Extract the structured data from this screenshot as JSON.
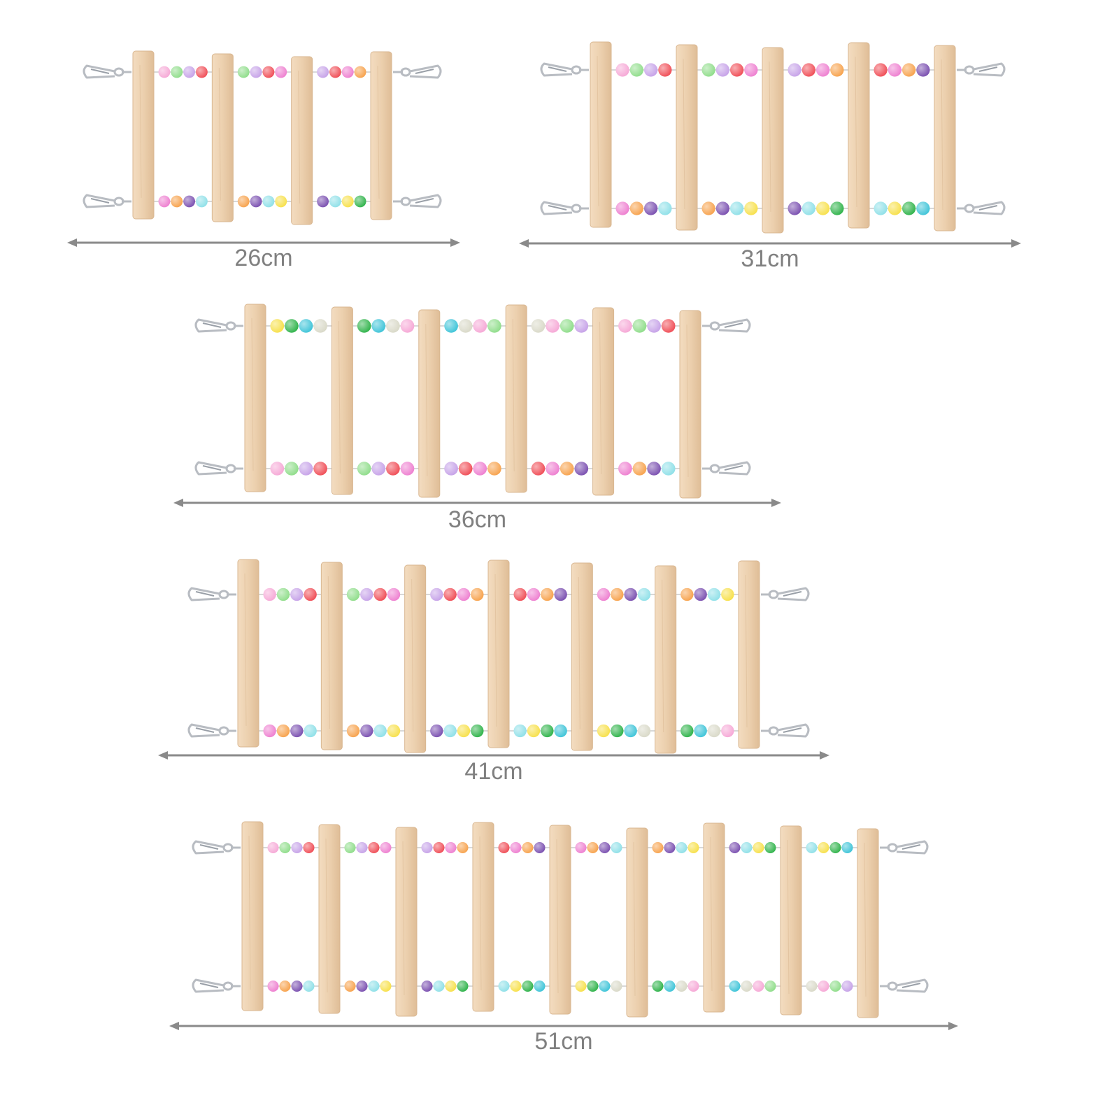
{
  "ladders": [
    {
      "label": "26cm",
      "rungs": 4
    },
    {
      "label": "31cm",
      "rungs": 5
    },
    {
      "label": "36cm",
      "rungs": 6
    },
    {
      "label": "41cm",
      "rungs": 7
    },
    {
      "label": "51cm",
      "rungs": 9
    }
  ],
  "colors": {
    "background": "#ffffff",
    "dimension_line": "#8a8a8a",
    "label_text": "#808080",
    "wood": "#ecd3b4",
    "wood_dark": "#d9b791",
    "metal_hook": "#b8bcc2",
    "beads": [
      "#f6a8d6",
      "#f7a24c",
      "#3ec4d8",
      "#f04d56",
      "#f7e04a",
      "#8fdd8a",
      "#7a4fb0",
      "#d9d9c8",
      "#ee7fd0",
      "#2fb34a",
      "#c6a2e8",
      "#8fe0e8"
    ]
  }
}
